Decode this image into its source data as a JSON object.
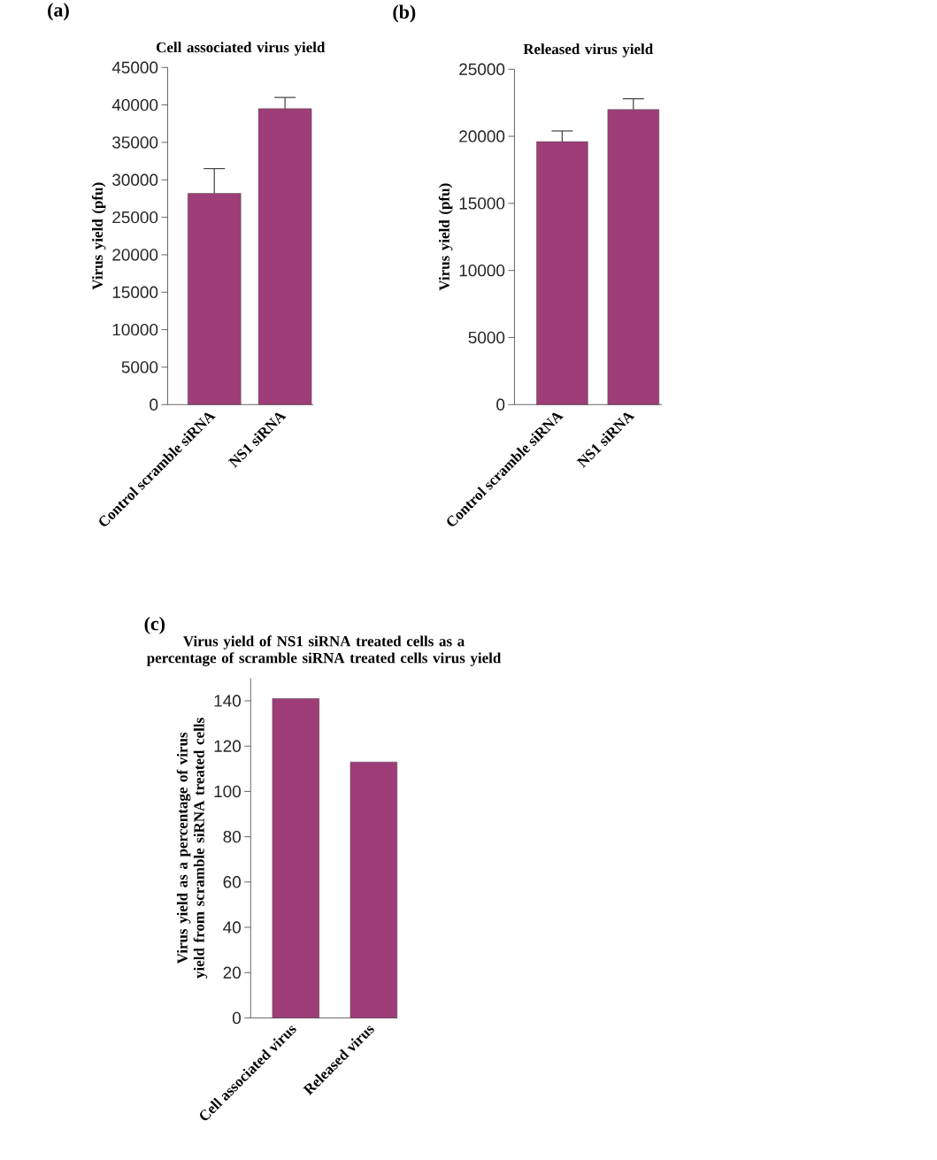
{
  "chart_data": [
    {
      "type": "bar",
      "title": "Cell associated virus yield",
      "ylabel": "Virus yield (pfu)",
      "annotations": [
        "(a)"
      ],
      "categories": [
        "Control scramble siRNA",
        "NS1 siRNA"
      ],
      "values": [
        28200,
        39500
      ],
      "errors": [
        [
          28200,
          31500
        ],
        [
          39500,
          41000
        ]
      ],
      "color": "#9e3d78",
      "ylim": [
        0,
        45000
      ],
      "yticks": [
        0,
        5000,
        10000,
        15000,
        20000,
        25000,
        30000,
        35000,
        40000,
        45000
      ],
      "grid": false
    },
    {
      "type": "bar",
      "title": "Released virus yield",
      "ylabel": "Virus yield (pfu)",
      "annotations": [
        "(b)"
      ],
      "categories": [
        "Control scramble siRNA",
        "NS1 siRNA"
      ],
      "values": [
        19600,
        22000
      ],
      "errors": [
        [
          19600,
          20400
        ],
        [
          22000,
          22800
        ]
      ],
      "color": "#9e3d78",
      "ylim": [
        0,
        25000
      ],
      "yticks": [
        0,
        5000,
        10000,
        15000,
        20000,
        25000
      ],
      "grid": false
    },
    {
      "type": "bar",
      "title": "Virus yield of NS1 siRNA treated cells as a percentage of scramble siRNA treated cells virus yield",
      "ylabel": "Virus yield as a percentage of virus yield from scramble siRNA treated cells",
      "annotations": [
        "(c)"
      ],
      "categories": [
        "Cell associated virus",
        "Released virus"
      ],
      "values": [
        141,
        113
      ],
      "color": "#9e3d78",
      "ylim": [
        0,
        150
      ],
      "yticks": [
        0,
        20,
        40,
        60,
        80,
        100,
        120,
        140
      ],
      "grid": false
    }
  ]
}
